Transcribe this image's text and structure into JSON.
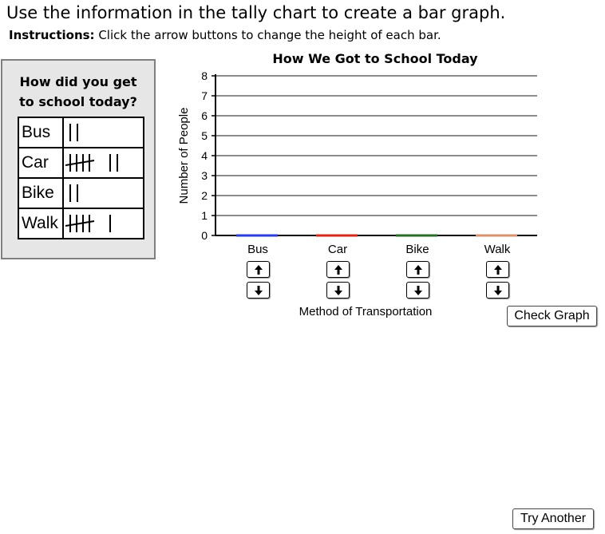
{
  "heading": "Use the information in the tally chart to create a bar graph.",
  "instructions": {
    "label": "Instructions:",
    "text": " Click the arrow buttons to change the height of each bar."
  },
  "tally": {
    "question_line1": "How did you get",
    "question_line2": "to school today?",
    "rows": [
      {
        "label": "Bus",
        "count": 2
      },
      {
        "label": "Car",
        "count": 7
      },
      {
        "label": "Bike",
        "count": 2
      },
      {
        "label": "Walk",
        "count": 6
      }
    ]
  },
  "chart_data": {
    "type": "bar",
    "title": "How We Got to School Today",
    "xlabel": "Method of Transportation",
    "ylabel": "Number of People",
    "categories": [
      "Bus",
      "Car",
      "Bike",
      "Walk"
    ],
    "values": [
      0,
      0,
      0,
      0
    ],
    "colors": [
      "#2b3ddb",
      "#d42a1c",
      "#2a6e28",
      "#d99270"
    ],
    "ylim": [
      0,
      8
    ],
    "yticks": [
      0,
      1,
      2,
      3,
      4,
      5,
      6,
      7,
      8
    ],
    "grid": true
  },
  "buttons": {
    "check": "Check Graph",
    "try_another": "Try Another",
    "up_icon": "arrow-up-icon",
    "down_icon": "arrow-down-icon"
  }
}
